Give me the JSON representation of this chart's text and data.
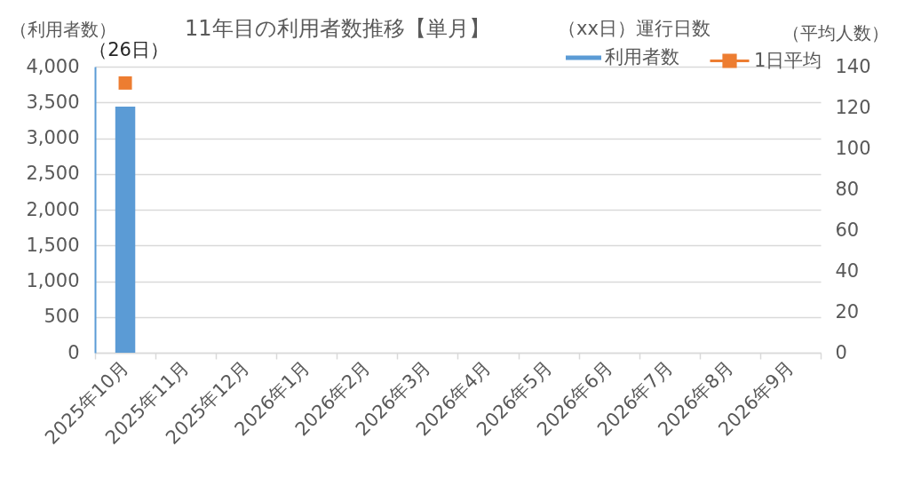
{
  "chart_data": {
    "type": "bar",
    "title": "11年目の利用者数推移【単月】",
    "ylabel": "（利用者数）",
    "y2label": "（平均人数）",
    "annotations": [
      "（xx日）運行日数",
      "（26日）"
    ],
    "categories": [
      "2025年10月",
      "2025年11月",
      "2025年12月",
      "2026年1月",
      "2026年2月",
      "2026年3月",
      "2026年4月",
      "2026年5月",
      "2026年6月",
      "2026年7月",
      "2026年8月",
      "2026年9月"
    ],
    "series": [
      {
        "name": "利用者数",
        "color": "#5b9bd5",
        "values": [
          3440,
          null,
          null,
          null,
          null,
          null,
          null,
          null,
          null,
          null,
          null,
          null
        ]
      },
      {
        "name": "1日平均",
        "type": "line",
        "axis": "y2",
        "color": "#ed7d31",
        "marker": "square",
        "line_style": "solid",
        "values": [
          132,
          null,
          null,
          null,
          null,
          null,
          null,
          null,
          null,
          null,
          null,
          null
        ]
      }
    ],
    "ylim": [
      0,
      4000
    ],
    "yticks": [
      0,
      500,
      {
        "value": 1000,
        "label": "1,000"
      },
      {
        "value": 1500,
        "label": "1,500"
      },
      {
        "value": 2000,
        "label": "2,000"
      },
      {
        "value": 2500,
        "label": "2,500"
      },
      {
        "value": 3000,
        "label": "3,000"
      },
      {
        "value": 3500,
        "label": "3,500"
      },
      {
        "value": 4000,
        "label": "4,000"
      }
    ],
    "y2lim": [
      0,
      140
    ],
    "y2ticks": [
      0,
      20,
      40,
      60,
      80,
      100,
      120,
      140
    ],
    "grid": "y",
    "legend": "top right"
  }
}
